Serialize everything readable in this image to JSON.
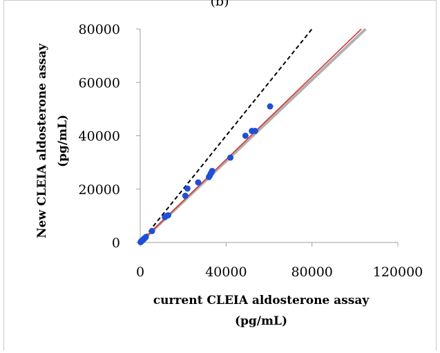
{
  "panel_label": "(b)",
  "chart_data": {
    "type": "scatter",
    "xlabel": [
      "current CLEIA  aldosterone assay",
      "(pg/mL)"
    ],
    "ylabel": [
      "New CLEIA aldosterone assay",
      "(pg/mL)"
    ],
    "xlim": [
      0,
      120000
    ],
    "ylim": [
      0,
      80000
    ],
    "x_ticks": [
      0,
      40000,
      80000,
      120000
    ],
    "y_ticks": [
      0,
      20000,
      40000,
      60000,
      80000
    ],
    "x_tick_labels": [
      "0",
      "40000",
      "80000",
      "120000"
    ],
    "y_tick_labels": [
      "0",
      "20000",
      "40000",
      "60000",
      "80000"
    ],
    "grid": false,
    "colors": {
      "points": "#1f4fd6",
      "identity_line": "#000000",
      "regression_line": "#e03030",
      "band_line": "#b0b0b0"
    },
    "series": [
      {
        "type": "scatter",
        "points": [
          [
            200,
            150
          ],
          [
            400,
            300
          ],
          [
            600,
            500
          ],
          [
            800,
            650
          ],
          [
            1000,
            800
          ],
          [
            1200,
            950
          ],
          [
            1500,
            1100
          ],
          [
            1800,
            1400
          ],
          [
            2200,
            1700
          ],
          [
            2600,
            2000
          ],
          [
            5500,
            4300
          ],
          [
            11500,
            9500
          ],
          [
            12500,
            10000
          ],
          [
            13000,
            10200
          ],
          [
            21000,
            17500
          ],
          [
            22000,
            20200
          ],
          [
            27000,
            22500
          ],
          [
            32000,
            24500
          ],
          [
            32500,
            25200
          ],
          [
            33000,
            26000
          ],
          [
            33500,
            26800
          ],
          [
            42000,
            31800
          ],
          [
            49000,
            40000
          ],
          [
            52000,
            41800
          ],
          [
            53500,
            41800
          ],
          [
            60500,
            51000
          ]
        ]
      },
      {
        "type": "line",
        "style": "dashed",
        "points": [
          [
            0,
            0
          ],
          [
            80000,
            80000
          ]
        ]
      },
      {
        "type": "line",
        "style": "solid",
        "points": [
          [
            0,
            0
          ],
          [
            103000,
            80000
          ]
        ]
      },
      {
        "type": "line",
        "style": "solid",
        "points": [
          [
            0,
            0
          ],
          [
            105000,
            80000
          ]
        ]
      }
    ]
  }
}
